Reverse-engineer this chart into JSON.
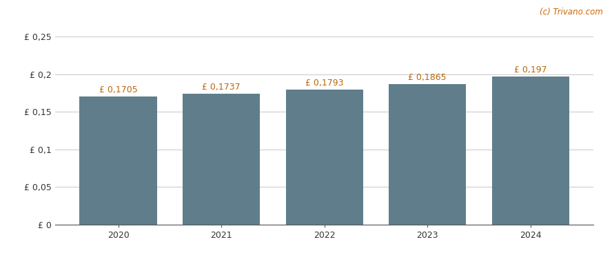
{
  "categories": [
    2020,
    2021,
    2022,
    2023,
    2024
  ],
  "values": [
    0.1705,
    0.1737,
    0.1793,
    0.1865,
    0.197
  ],
  "bar_color": "#607d8b",
  "background_color": "#ffffff",
  "grid_color": "#cccccc",
  "annotation_color": "#b8670a",
  "yticks": [
    0,
    0.05,
    0.1,
    0.15,
    0.2,
    0.25
  ],
  "ytick_labels": [
    "£ 0",
    "£ 0,05",
    "£ 0,1",
    "£ 0,15",
    "£ 0,2",
    "£ 0,25"
  ],
  "ylim": [
    0,
    0.275
  ],
  "bar_annotations": [
    "£ 0,1705",
    "£ 0,1737",
    "£ 0,1793",
    "£ 0,1865",
    "£ 0,197"
  ],
  "watermark": "(c) Trivano.com",
  "watermark_color": "#cc6600",
  "annotation_fontsize": 9,
  "tick_fontsize": 9,
  "bar_width": 0.75
}
